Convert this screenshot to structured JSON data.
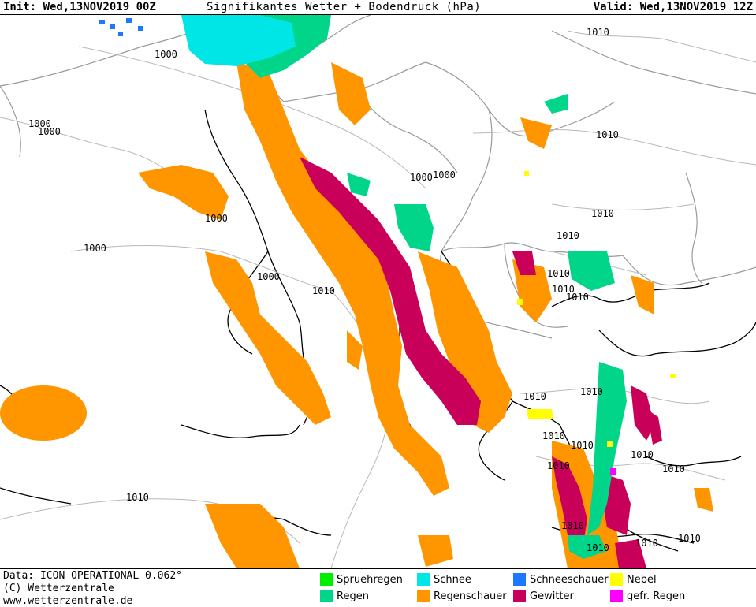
{
  "header": {
    "init": "Init: Wed,13NOV2019 00Z",
    "title": "Signifikantes Wetter +  Bodendruck (hPa)",
    "valid": "Valid: Wed,13NOV2019 12Z"
  },
  "footer": {
    "data_line": "Data: ICON OPERATIONAL 0.062°",
    "copyright": "(C) Wetterzentrale",
    "website": "www.wetterzentrale.de"
  },
  "legend": [
    {
      "label": "Spruehregen",
      "color": "#00ee00"
    },
    {
      "label": "Schnee",
      "color": "#00e6e6"
    },
    {
      "label": "Schneeschauer",
      "color": "#1e78ff"
    },
    {
      "label": "Nebel",
      "color": "#ffff00"
    },
    {
      "label": "Regen",
      "color": "#00d58a"
    },
    {
      "label": "Regenschauer",
      "color": "#ff9600"
    },
    {
      "label": "Gewitter",
      "color": "#c8005a"
    },
    {
      "label": "gefr. Regen",
      "color": "#ff00ff"
    }
  ],
  "isobars": {
    "labels": [
      "1010",
      "1000",
      "1000",
      "1000",
      "1000",
      "1000",
      "1010",
      "1000",
      "1000",
      "1000",
      "1010",
      "1010",
      "1010",
      "1010",
      "1010",
      "1010",
      "1010",
      "1010",
      "1010",
      "1010",
      "1010",
      "1010",
      "1010",
      "1010",
      "1010",
      "1010",
      "1010",
      "1010"
    ]
  }
}
